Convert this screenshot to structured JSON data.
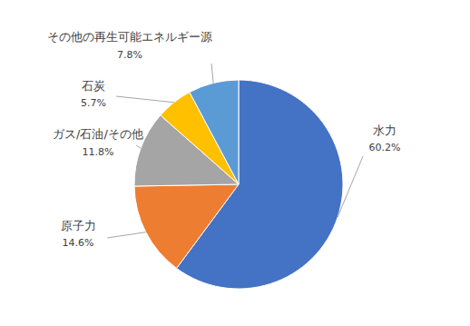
{
  "chart_data": {
    "type": "pie",
    "categories": [
      "水力",
      "原子力",
      "ガス/石油/その他",
      "石炭",
      "その他の再生可能エネルギー源"
    ],
    "values": [
      60.2,
      14.6,
      11.8,
      5.7,
      7.8
    ],
    "value_labels": [
      "60.2%",
      "14.6%",
      "11.8%",
      "5.7%",
      "7.8%"
    ],
    "colors": [
      "#4472c4",
      "#ed7d31",
      "#a5a5a5",
      "#ffc000",
      "#5b9bd5"
    ],
    "data_labels": true
  }
}
